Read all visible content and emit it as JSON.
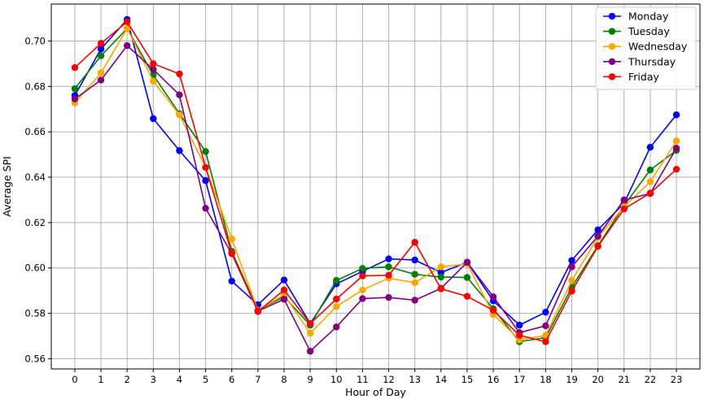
{
  "chart_data": {
    "type": "line",
    "title": "",
    "xlabel": "Hour of Day",
    "ylabel": "Average SPI",
    "x": [
      0,
      1,
      2,
      3,
      4,
      5,
      6,
      7,
      8,
      9,
      10,
      11,
      12,
      13,
      14,
      15,
      16,
      17,
      18,
      19,
      20,
      21,
      22,
      23
    ],
    "xticks": [
      "0",
      "1",
      "2",
      "3",
      "4",
      "5",
      "6",
      "7",
      "8",
      "9",
      "10",
      "11",
      "12",
      "13",
      "14",
      "15",
      "16",
      "17",
      "18",
      "19",
      "20",
      "21",
      "22",
      "23"
    ],
    "yticks": [
      "0.56",
      "0.58",
      "0.60",
      "0.62",
      "0.64",
      "0.66",
      "0.68",
      "0.70"
    ],
    "ytick_values": [
      0.56,
      0.58,
      0.6,
      0.62,
      0.64,
      0.66,
      0.68,
      0.7
    ],
    "xlim": [
      -0.9,
      23.9
    ],
    "ylim": [
      0.5555,
      0.7163
    ],
    "grid": true,
    "legend_position": "top-right",
    "series": [
      {
        "name": "Monday",
        "color": "#0000ff",
        "values": [
          0.676,
          0.6965,
          0.7095,
          0.6658,
          0.6517,
          0.6385,
          0.5942,
          0.5838,
          0.5947,
          0.5755,
          0.593,
          0.5985,
          0.604,
          0.6035,
          0.598,
          0.6025,
          0.5855,
          0.5748,
          0.5805,
          0.6033,
          0.6168,
          0.6285,
          0.6532,
          0.6675
        ]
      },
      {
        "name": "Tuesday",
        "color": "#008000",
        "values": [
          0.679,
          0.6935,
          0.7055,
          0.685,
          0.668,
          0.6513,
          0.6073,
          0.5815,
          0.5873,
          0.5748,
          0.5945,
          0.5998,
          0.6005,
          0.5972,
          0.596,
          0.5958,
          0.582,
          0.5675,
          0.5693,
          0.5915,
          0.6098,
          0.6275,
          0.6432,
          0.6518
        ]
      },
      {
        "name": "Wednesday",
        "color": "#ffa500",
        "values": [
          0.6727,
          0.686,
          0.7055,
          0.6823,
          0.6675,
          0.6443,
          0.6128,
          0.5813,
          0.5882,
          0.5712,
          0.583,
          0.5903,
          0.5955,
          0.5935,
          0.6005,
          0.6018,
          0.5795,
          0.5683,
          0.5703,
          0.5945,
          0.6135,
          0.627,
          0.638,
          0.656
        ]
      },
      {
        "name": "Thursday",
        "color": "#800080",
        "values": [
          0.6745,
          0.6828,
          0.698,
          0.6875,
          0.6763,
          0.6263,
          0.6063,
          0.581,
          0.5862,
          0.5633,
          0.574,
          0.5865,
          0.587,
          0.5858,
          0.591,
          0.6025,
          0.5873,
          0.5715,
          0.5745,
          0.6005,
          0.614,
          0.63,
          0.6328,
          0.6528
        ]
      },
      {
        "name": "Friday",
        "color": "#ff0000",
        "values": [
          0.6883,
          0.699,
          0.7085,
          0.69,
          0.6855,
          0.6443,
          0.6065,
          0.5808,
          0.5903,
          0.5755,
          0.5863,
          0.5965,
          0.5968,
          0.6113,
          0.5908,
          0.5875,
          0.5813,
          0.5703,
          0.5675,
          0.5898,
          0.6095,
          0.626,
          0.633,
          0.6435
        ]
      }
    ]
  }
}
